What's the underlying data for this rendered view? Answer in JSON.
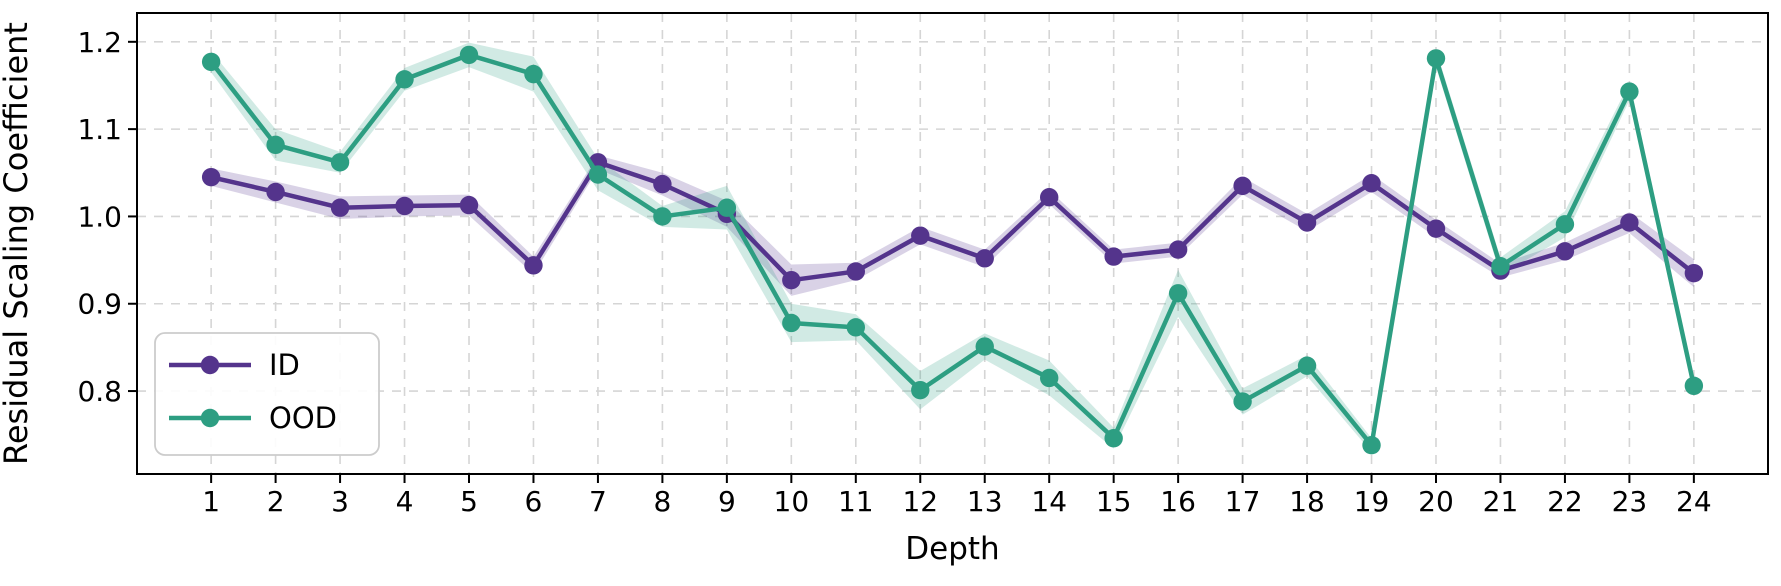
{
  "chart_data": {
    "type": "line",
    "title": "",
    "xlabel": "Depth",
    "ylabel": "Residual Scaling Coefficient",
    "x": [
      1,
      2,
      3,
      4,
      5,
      6,
      7,
      8,
      9,
      10,
      11,
      12,
      13,
      14,
      15,
      16,
      17,
      18,
      19,
      20,
      21,
      22,
      23,
      24
    ],
    "xtick_labels": [
      "1",
      "2",
      "3",
      "4",
      "5",
      "6",
      "7",
      "8",
      "9",
      "10",
      "11",
      "12",
      "13",
      "14",
      "15",
      "16",
      "17",
      "18",
      "19",
      "20",
      "21",
      "22",
      "23",
      "24"
    ],
    "yticks": [
      0.8,
      0.9,
      1.0,
      1.1,
      1.2
    ],
    "ytick_labels": [
      "0.8",
      "0.9",
      "1.0",
      "1.1",
      "1.2"
    ],
    "xlim": [
      -0.15,
      25.15
    ],
    "ylim": [
      0.705,
      1.233
    ],
    "grid": true,
    "grid_style": "dashed",
    "legend": {
      "position": "lower-left",
      "entries": [
        "ID",
        "OOD"
      ]
    },
    "colors": {
      "grid": "#d5d5d5",
      "spine": "#000000",
      "text": "#000000",
      "legend_border": "#cccccc",
      "background": "#ffffff"
    },
    "series": [
      {
        "name": "ID",
        "color": "#54348c",
        "band_opacity": 0.22,
        "values": [
          1.045,
          1.028,
          1.01,
          1.012,
          1.013,
          0.944,
          1.062,
          1.037,
          1.003,
          0.927,
          0.937,
          0.978,
          0.952,
          1.022,
          0.954,
          0.962,
          1.035,
          0.993,
          1.038,
          0.986,
          0.938,
          0.96,
          0.993,
          0.935
        ],
        "band_halfwidth": [
          0.01,
          0.012,
          0.013,
          0.012,
          0.012,
          0.01,
          0.008,
          0.013,
          0.015,
          0.018,
          0.01,
          0.01,
          0.01,
          0.008,
          0.008,
          0.008,
          0.01,
          0.01,
          0.01,
          0.01,
          0.008,
          0.01,
          0.012,
          0.016
        ]
      },
      {
        "name": "OOD",
        "color": "#2d9e82",
        "band_opacity": 0.22,
        "values": [
          1.177,
          1.082,
          1.062,
          1.157,
          1.185,
          1.163,
          1.048,
          1.0,
          1.01,
          0.878,
          0.873,
          0.801,
          0.851,
          0.815,
          0.746,
          0.912,
          0.788,
          0.829,
          0.738,
          1.181,
          0.943,
          0.991,
          1.143,
          0.806
        ],
        "band_halfwidth": [
          0.012,
          0.018,
          0.012,
          0.013,
          0.014,
          0.02,
          0.018,
          0.012,
          0.025,
          0.022,
          0.015,
          0.022,
          0.015,
          0.02,
          0.012,
          0.027,
          0.015,
          0.012,
          0.008,
          0.01,
          0.01,
          0.015,
          0.01,
          0.006
        ]
      }
    ]
  }
}
